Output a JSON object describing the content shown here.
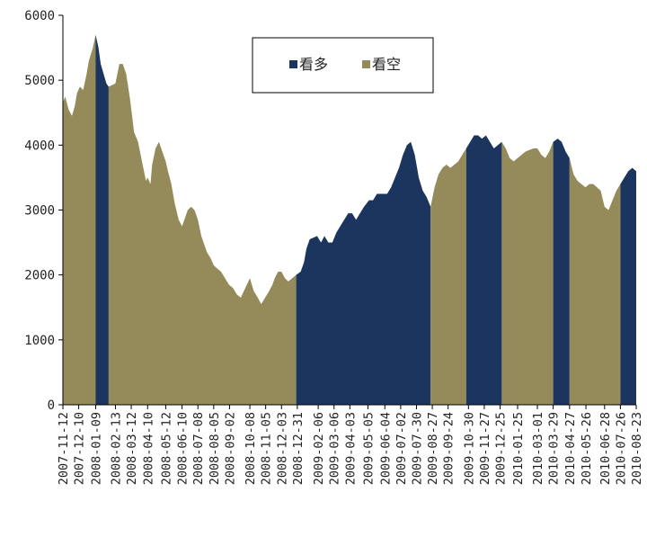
{
  "chart_data": {
    "type": "area",
    "title": "",
    "xlabel": "",
    "ylabel": "",
    "ylim": [
      0,
      6000
    ],
    "yticks": [
      0,
      1000,
      2000,
      3000,
      4000,
      5000,
      6000
    ],
    "x_start": "2007-11-12",
    "x_end": "2010-08-23",
    "xticks": [
      "2007-11-12",
      "2007-12-10",
      "2008-01-09",
      "2008-02-13",
      "2008-03-12",
      "2008-04-10",
      "2008-05-12",
      "2008-06-10",
      "2008-07-08",
      "2008-08-05",
      "2008-09-02",
      "2008-10-08",
      "2008-11-05",
      "2008-12-03",
      "2008-12-31",
      "2009-02-06",
      "2009-03-06",
      "2009-04-03",
      "2009-05-05",
      "2009-06-04",
      "2009-07-02",
      "2009-07-30",
      "2009-08-27",
      "2009-09-24",
      "2009-10-30",
      "2009-11-27",
      "2009-12-25",
      "2010-01-25",
      "2010-03-01",
      "2010-03-29",
      "2010-04-27",
      "2010-05-26",
      "2010-06-28",
      "2010-07-26",
      "2010-08-23"
    ],
    "grid": false,
    "legend": {
      "position": "top-center",
      "entries": [
        {
          "label": "看多",
          "color": "#1c355e"
        },
        {
          "label": "看空",
          "color": "#958b5a"
        }
      ]
    },
    "series": [
      {
        "name": "index",
        "x": [
          "2007-11-12",
          "2007-11-16",
          "2007-11-22",
          "2007-11-28",
          "2007-12-03",
          "2007-12-07",
          "2007-12-12",
          "2007-12-18",
          "2007-12-24",
          "2007-12-28",
          "2008-01-04",
          "2008-01-09",
          "2008-01-14",
          "2008-01-18",
          "2008-01-23",
          "2008-01-28",
          "2008-02-01",
          "2008-02-13",
          "2008-02-20",
          "2008-02-26",
          "2008-03-03",
          "2008-03-10",
          "2008-03-17",
          "2008-03-24",
          "2008-03-31",
          "2008-04-07",
          "2008-04-10",
          "2008-04-15",
          "2008-04-18",
          "2008-04-24",
          "2008-04-30",
          "2008-05-06",
          "2008-05-12",
          "2008-05-16",
          "2008-05-22",
          "2008-05-28",
          "2008-06-04",
          "2008-06-10",
          "2008-06-16",
          "2008-06-20",
          "2008-06-26",
          "2008-07-02",
          "2008-07-08",
          "2008-07-14",
          "2008-07-18",
          "2008-07-24",
          "2008-07-31",
          "2008-08-05",
          "2008-08-11",
          "2008-08-18",
          "2008-08-25",
          "2008-09-01",
          "2008-09-08",
          "2008-09-15",
          "2008-09-22",
          "2008-10-08",
          "2008-10-15",
          "2008-10-22",
          "2008-10-28",
          "2008-11-04",
          "2008-11-11",
          "2008-11-17",
          "2008-11-21",
          "2008-11-27",
          "2008-12-03",
          "2008-12-09",
          "2008-12-15",
          "2008-12-22",
          "2008-12-29",
          "2009-01-06",
          "2009-01-12",
          "2009-01-16",
          "2009-01-22",
          "2009-02-04",
          "2009-02-11",
          "2009-02-17",
          "2009-02-24",
          "2009-03-03",
          "2009-03-10",
          "2009-03-17",
          "2009-03-24",
          "2009-03-31",
          "2009-04-07",
          "2009-04-14",
          "2009-04-21",
          "2009-04-28",
          "2009-05-07",
          "2009-05-14",
          "2009-05-21",
          "2009-06-01",
          "2009-06-08",
          "2009-06-15",
          "2009-06-22",
          "2009-06-29",
          "2009-07-06",
          "2009-07-13",
          "2009-07-20",
          "2009-07-27",
          "2009-08-03",
          "2009-08-10",
          "2009-08-17",
          "2009-08-24",
          "2009-08-31",
          "2009-09-07",
          "2009-09-14",
          "2009-09-21",
          "2009-09-28",
          "2009-10-12",
          "2009-10-19",
          "2009-10-26",
          "2009-11-02",
          "2009-11-09",
          "2009-11-16",
          "2009-11-23",
          "2009-11-30",
          "2009-12-07",
          "2009-12-14",
          "2009-12-21",
          "2009-12-28",
          "2010-01-04",
          "2010-01-11",
          "2010-01-18",
          "2010-01-25",
          "2010-02-01",
          "2010-02-08",
          "2010-02-22",
          "2010-03-01",
          "2010-03-08",
          "2010-03-15",
          "2010-03-22",
          "2010-03-29",
          "2010-04-06",
          "2010-04-13",
          "2010-04-20",
          "2010-04-27",
          "2010-05-04",
          "2010-05-11",
          "2010-05-18",
          "2010-05-25",
          "2010-06-01",
          "2010-06-08",
          "2010-06-21",
          "2010-06-28",
          "2010-07-05",
          "2010-07-12",
          "2010-07-19",
          "2010-07-26",
          "2010-08-02",
          "2010-08-09",
          "2010-08-16",
          "2010-08-23"
        ],
        "values": [
          4650,
          4750,
          4550,
          4450,
          4600,
          4800,
          4900,
          4850,
          5100,
          5300,
          5500,
          5700,
          5500,
          5250,
          5100,
          4950,
          4900,
          4950,
          5250,
          5250,
          5100,
          4700,
          4200,
          4050,
          3750,
          3450,
          3500,
          3400,
          3700,
          3950,
          4050,
          3900,
          3750,
          3600,
          3400,
          3100,
          2850,
          2750,
          2900,
          3000,
          3050,
          3000,
          2850,
          2600,
          2500,
          2350,
          2250,
          2150,
          2100,
          2050,
          1950,
          1850,
          1800,
          1700,
          1650,
          1950,
          1750,
          1650,
          1550,
          1650,
          1750,
          1850,
          1950,
          2050,
          2050,
          1950,
          1900,
          1950,
          2000,
          2050,
          2200,
          2400,
          2550,
          2600,
          2500,
          2600,
          2500,
          2500,
          2650,
          2750,
          2850,
          2950,
          2950,
          2850,
          2950,
          3050,
          3150,
          3150,
          3250,
          3250,
          3250,
          3350,
          3500,
          3650,
          3850,
          4000,
          4050,
          3850,
          3500,
          3300,
          3200,
          3050,
          3350,
          3550,
          3650,
          3700,
          3650,
          3750,
          3850,
          3950,
          4050,
          4150,
          4150,
          4100,
          4150,
          4050,
          3950,
          4000,
          4050,
          3950,
          3800,
          3750,
          3800,
          3850,
          3900,
          3950,
          3950,
          3850,
          3800,
          3900,
          4050,
          4100,
          4050,
          3900,
          3800,
          3550,
          3450,
          3400,
          3350,
          3400,
          3400,
          3300,
          3050,
          3000,
          3150,
          3300,
          3400,
          3500,
          3600,
          3650,
          3600
        ]
      }
    ],
    "regimes": [
      {
        "from": "2007-11-12",
        "to": "2008-01-09",
        "label": "看空"
      },
      {
        "from": "2008-01-09",
        "to": "2008-02-01",
        "label": "看多"
      },
      {
        "from": "2008-02-01",
        "to": "2008-12-29",
        "label": "看空"
      },
      {
        "from": "2008-12-29",
        "to": "2009-08-24",
        "label": "看多"
      },
      {
        "from": "2009-08-24",
        "to": "2009-10-26",
        "label": "看空"
      },
      {
        "from": "2009-10-26",
        "to": "2009-12-28",
        "label": "看多"
      },
      {
        "from": "2009-12-28",
        "to": "2010-03-29",
        "label": "看空"
      },
      {
        "from": "2010-03-29",
        "to": "2010-04-27",
        "label": "看多"
      },
      {
        "from": "2010-04-27",
        "to": "2010-07-26",
        "label": "看空"
      },
      {
        "from": "2010-07-26",
        "to": "2010-08-23",
        "label": "看多"
      }
    ]
  }
}
